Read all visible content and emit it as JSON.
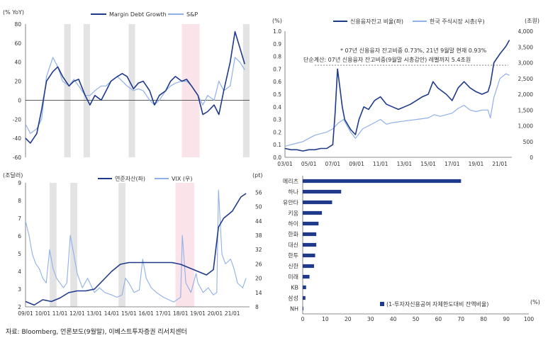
{
  "source_note": "자료: Bloomberg, 언론보도(9월말), 이베스트투자증권 리서치센터",
  "colors": {
    "dark": "#1f3a8a",
    "light": "#8fb0e8",
    "shade_gray": "#e3e3e3",
    "shade_pink": "#fbe3ea",
    "bar": "#1f3a8a"
  },
  "chart_data": [
    {
      "type": "line",
      "unit_label": "(% YoY)",
      "ylim": [
        -60,
        80
      ],
      "yticks": [
        "80",
        "60",
        "40",
        "20",
        "0",
        "-20",
        "-40",
        "-60"
      ],
      "legend_placement": "top",
      "series": [
        {
          "name": "Margin Debt Growth",
          "x": [
            2008.0,
            2008.3,
            2008.7,
            2009.0,
            2009.3,
            2009.7,
            2010.0,
            2010.3,
            2010.7,
            2011.0,
            2011.3,
            2011.7,
            2012.0,
            2012.3,
            2012.7,
            2013.0,
            2013.3,
            2013.7,
            2014.0,
            2014.3,
            2014.7,
            2015.0,
            2015.3,
            2015.7,
            2016.0,
            2016.3,
            2016.7,
            2017.0,
            2017.3,
            2017.7,
            2018.0,
            2018.3,
            2018.7,
            2019.0,
            2019.3,
            2019.7,
            2020.0,
            2020.3,
            2020.7,
            2021.0,
            2021.3,
            2021.6
          ],
          "y": [
            -40,
            -45,
            -35,
            -10,
            20,
            30,
            35,
            25,
            15,
            20,
            22,
            5,
            -5,
            5,
            0,
            10,
            20,
            25,
            28,
            25,
            12,
            18,
            20,
            10,
            -5,
            5,
            10,
            20,
            25,
            20,
            22,
            15,
            5,
            -15,
            -12,
            -5,
            -15,
            10,
            40,
            72,
            55,
            38
          ]
        },
        {
          "name": "S&P",
          "x": [
            2008.0,
            2008.3,
            2008.7,
            2009.0,
            2009.3,
            2009.7,
            2010.0,
            2010.3,
            2010.7,
            2011.0,
            2011.3,
            2011.7,
            2012.0,
            2012.3,
            2012.7,
            2013.0,
            2013.3,
            2013.7,
            2014.0,
            2014.3,
            2014.7,
            2015.0,
            2015.3,
            2015.7,
            2016.0,
            2016.3,
            2016.7,
            2017.0,
            2017.3,
            2017.7,
            2018.0,
            2018.3,
            2018.7,
            2019.0,
            2019.3,
            2019.7,
            2020.0,
            2020.3,
            2020.7,
            2021.0,
            2021.3,
            2021.6
          ],
          "y": [
            -25,
            -35,
            -30,
            -20,
            25,
            45,
            35,
            20,
            15,
            22,
            15,
            5,
            5,
            10,
            15,
            15,
            20,
            25,
            20,
            15,
            10,
            12,
            10,
            0,
            -5,
            0,
            10,
            15,
            18,
            20,
            20,
            15,
            5,
            -5,
            5,
            0,
            20,
            10,
            15,
            45,
            40,
            32
          ]
        }
      ],
      "shaded_ranges": [
        {
          "from": 2010.4,
          "to": 2010.8,
          "color": "gray"
        },
        {
          "from": 2011.6,
          "to": 2012.0,
          "color": "gray"
        },
        {
          "from": 2014.4,
          "to": 2014.8,
          "color": "gray"
        },
        {
          "from": 2017.7,
          "to": 2018.8,
          "color": "pink"
        },
        {
          "from": 2021.5,
          "to": 2021.9,
          "color": "gray"
        }
      ]
    },
    {
      "type": "line",
      "unit_label": "(조달러)",
      "unit_label_right": "(pt)",
      "ylim_left": [
        2,
        9
      ],
      "ylim_right": [
        8,
        60
      ],
      "yticks_left": [
        "9",
        "8",
        "7",
        "6",
        "5",
        "4",
        "3",
        "2"
      ],
      "yticks_right": [
        "56",
        "50",
        "44",
        "38",
        "32",
        "26",
        "20",
        "14",
        "8"
      ],
      "xtick_labels": [
        "09/01",
        "10/01",
        "11/01",
        "12/01",
        "13/01",
        "14/01",
        "15/01",
        "16/01",
        "17/01",
        "18/01",
        "19/01",
        "20/01",
        "21/01"
      ],
      "legend_placement": "top",
      "series": [
        {
          "name": "연준자산(좌)",
          "axis": "left",
          "x": [
            2009.0,
            2009.5,
            2010.0,
            2010.5,
            2011.0,
            2011.5,
            2012.0,
            2012.5,
            2013.0,
            2013.5,
            2014.0,
            2014.5,
            2015.0,
            2016.0,
            2017.0,
            2017.5,
            2018.0,
            2018.5,
            2019.0,
            2019.5,
            2019.9,
            2020.2,
            2020.5,
            2021.0,
            2021.5,
            2021.8
          ],
          "y": [
            2.3,
            2.1,
            2.4,
            2.3,
            2.5,
            2.8,
            2.9,
            2.9,
            3.0,
            3.5,
            4.0,
            4.4,
            4.5,
            4.5,
            4.5,
            4.5,
            4.4,
            4.2,
            4.0,
            3.8,
            4.1,
            6.5,
            7.0,
            7.4,
            8.2,
            8.4
          ]
        },
        {
          "name": "VIX (우)",
          "axis": "right",
          "x": [
            2009.0,
            2009.2,
            2009.4,
            2009.6,
            2009.8,
            2010.0,
            2010.2,
            2010.4,
            2010.6,
            2010.8,
            2011.0,
            2011.2,
            2011.4,
            2011.6,
            2011.8,
            2012.0,
            2012.3,
            2012.6,
            2013.0,
            2013.3,
            2013.6,
            2014.0,
            2014.3,
            2014.6,
            2014.8,
            2015.0,
            2015.3,
            2015.6,
            2015.8,
            2016.0,
            2016.3,
            2016.6,
            2017.0,
            2017.3,
            2017.6,
            2018.0,
            2018.1,
            2018.3,
            2018.6,
            2018.9,
            2019.0,
            2019.3,
            2019.6,
            2019.9,
            2020.1,
            2020.2,
            2020.4,
            2020.6,
            2020.9,
            2021.1,
            2021.3,
            2021.6,
            2021.8
          ],
          "y": [
            44,
            38,
            30,
            26,
            24,
            20,
            18,
            32,
            24,
            20,
            18,
            16,
            18,
            38,
            30,
            22,
            16,
            20,
            14,
            16,
            14,
            13,
            12,
            13,
            20,
            18,
            14,
            15,
            28,
            20,
            16,
            14,
            12,
            11,
            10,
            12,
            38,
            18,
            14,
            22,
            18,
            14,
            16,
            13,
            14,
            57,
            30,
            26,
            28,
            24,
            18,
            16,
            20
          ]
        }
      ],
      "shaded_ranges": [
        {
          "from": 2010.4,
          "to": 2010.8,
          "color": "gray"
        },
        {
          "from": 2011.6,
          "to": 2012.0,
          "color": "gray"
        },
        {
          "from": 2014.4,
          "to": 2014.8,
          "color": "gray"
        },
        {
          "from": 2017.7,
          "to": 2018.8,
          "color": "pink"
        }
      ]
    },
    {
      "type": "line",
      "unit_label": "(%)",
      "unit_label_right": "(조원)",
      "ylim_left": [
        0,
        1.0
      ],
      "ylim_right": [
        0,
        4000
      ],
      "yticks_left": [
        "1.0",
        "0.9",
        "0.8",
        "0.7",
        "0.6",
        "0.5",
        "0.4",
        "0.3",
        "0.2",
        "0.1",
        "0.0"
      ],
      "yticks_right": [
        "4,000",
        "3,500",
        "3,000",
        "2,500",
        "2,000",
        "1,500",
        "1,000",
        "500",
        "0"
      ],
      "xtick_labels": [
        "03/01",
        "05/01",
        "07/01",
        "09/01",
        "11/01",
        "13/01",
        "15/01",
        "17/01",
        "19/01",
        "21/01"
      ],
      "legend_placement": "top",
      "annotation_line1": "* 07년 신용융자 잔고비중 0.73%, 21년 9월말 현재 0.93%",
      "annotation_line2": "단순계산: 07년 신용융자 잔고비중(9월말 시총감안) 레벨까지 5.4조원",
      "reference_level": 0.73,
      "series": [
        {
          "name": "신용융자잔고 비율(좌)",
          "axis": "left",
          "x": [
            2003.0,
            2003.5,
            2004.0,
            2004.5,
            2005.0,
            2005.5,
            2006.0,
            2006.5,
            2007.0,
            2007.2,
            2007.4,
            2007.6,
            2007.8,
            2008.0,
            2008.5,
            2008.9,
            2009.2,
            2009.6,
            2010.0,
            2010.5,
            2011.0,
            2011.5,
            2012.0,
            2012.5,
            2013.0,
            2013.5,
            2014.0,
            2014.5,
            2015.0,
            2015.4,
            2015.8,
            2016.5,
            2017.0,
            2017.5,
            2018.0,
            2018.5,
            2019.0,
            2019.5,
            2020.0,
            2020.2,
            2020.5,
            2021.0,
            2021.5,
            2021.8
          ],
          "y": [
            0.07,
            0.06,
            0.06,
            0.05,
            0.06,
            0.06,
            0.07,
            0.07,
            0.1,
            0.35,
            0.7,
            0.55,
            0.4,
            0.3,
            0.22,
            0.18,
            0.3,
            0.4,
            0.38,
            0.45,
            0.48,
            0.42,
            0.4,
            0.38,
            0.4,
            0.42,
            0.45,
            0.48,
            0.5,
            0.6,
            0.55,
            0.5,
            0.45,
            0.55,
            0.6,
            0.55,
            0.52,
            0.5,
            0.52,
            0.58,
            0.75,
            0.82,
            0.88,
            0.93
          ]
        },
        {
          "name": "한국 주식시장 시총(우)",
          "axis": "right",
          "x": [
            2003.0,
            2003.5,
            2004.0,
            2004.5,
            2005.0,
            2005.5,
            2006.0,
            2006.5,
            2007.0,
            2007.5,
            2007.9,
            2008.5,
            2008.9,
            2009.5,
            2010.0,
            2010.5,
            2011.0,
            2011.5,
            2012.0,
            2013.0,
            2014.0,
            2015.0,
            2015.5,
            2016.0,
            2017.0,
            2017.5,
            2018.0,
            2018.5,
            2019.0,
            2019.5,
            2020.0,
            2020.2,
            2020.5,
            2021.0,
            2021.5,
            2021.8
          ],
          "y": [
            350,
            400,
            450,
            500,
            600,
            700,
            750,
            800,
            900,
            1100,
            1200,
            800,
            600,
            900,
            1000,
            1100,
            1200,
            1050,
            1100,
            1150,
            1200,
            1250,
            1350,
            1300,
            1400,
            1550,
            1650,
            1500,
            1450,
            1500,
            1500,
            1250,
            1900,
            2500,
            2650,
            2600
          ]
        }
      ]
    },
    {
      "type": "bar",
      "orientation": "horizontal",
      "categories": [
        "메리츠",
        "하나",
        "유안타",
        "키움",
        "하이",
        "한화",
        "대신",
        "한투",
        "신한",
        "미래",
        "KB",
        "삼성",
        "NH"
      ],
      "values": [
        70,
        17,
        13,
        8.5,
        7,
        6,
        6,
        5.5,
        5,
        3,
        1.5,
        1.2,
        0.3
      ],
      "xlim": [
        0,
        100
      ],
      "xticks": [
        "0",
        "10",
        "20",
        "30",
        "40",
        "50",
        "60",
        "70",
        "80",
        "90",
        "100"
      ],
      "unit_label": "(%)",
      "legend_placement": "bottom-right",
      "series": [
        {
          "name": "(1-투자자신용공여 자체한도대비 잔액비율)"
        }
      ]
    }
  ]
}
